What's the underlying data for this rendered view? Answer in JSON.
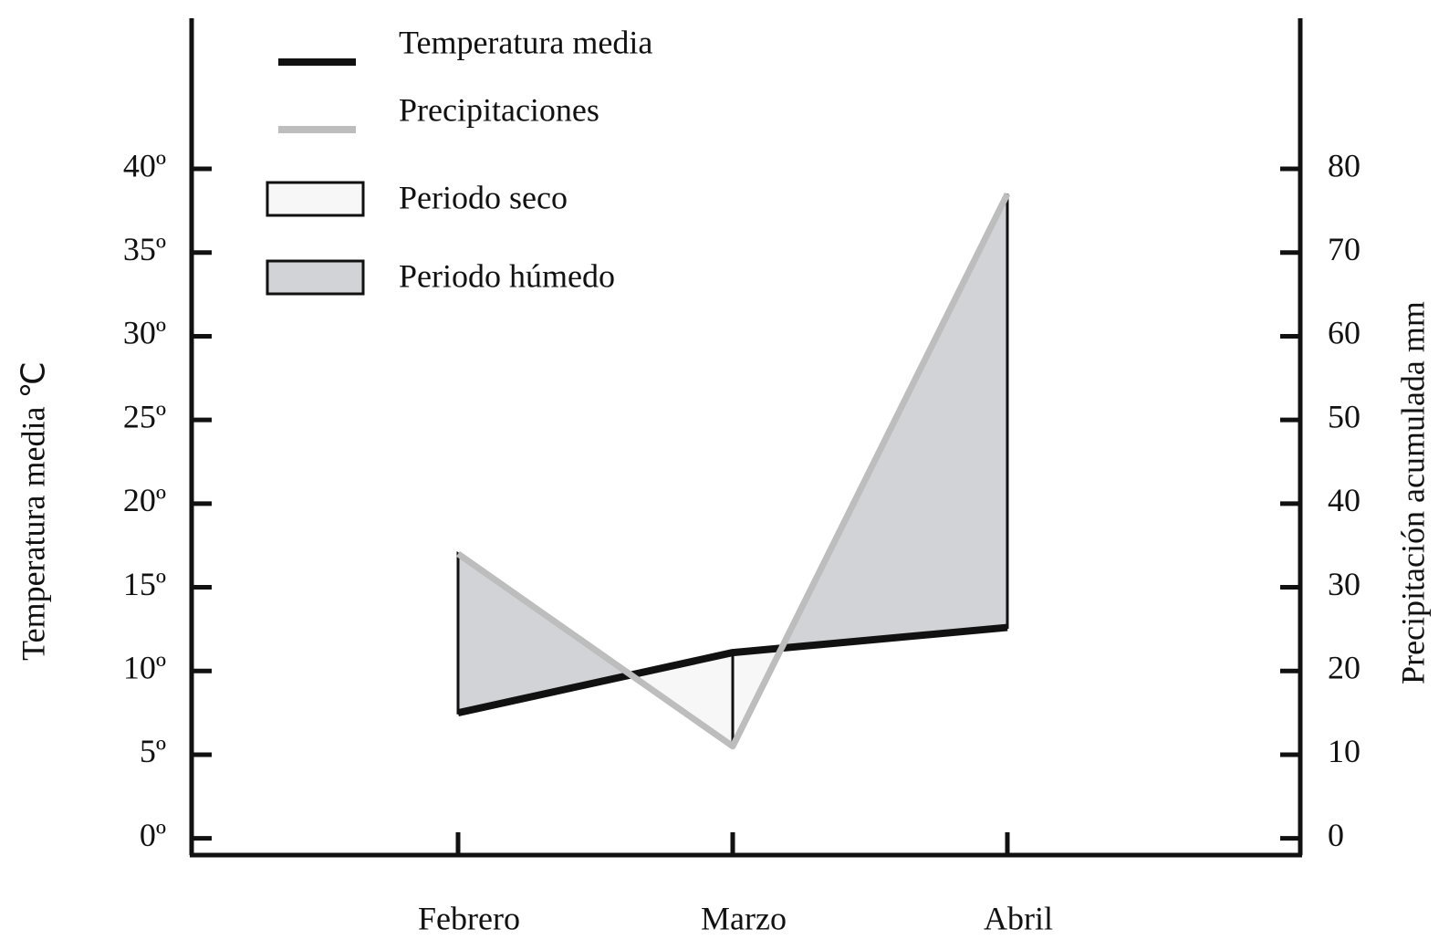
{
  "chart_data": {
    "type": "line",
    "categories": [
      "Febrero",
      "Marzo",
      "Abril"
    ],
    "series": [
      {
        "name": "Temperatura media",
        "color": "#111111",
        "values": [
          7.5,
          11.1,
          12.6
        ]
      },
      {
        "name": "Precipitaciones",
        "color": "#bdbdbd",
        "values": [
          34,
          11,
          77
        ],
        "axis": "y2"
      }
    ],
    "areas": [
      {
        "name": "Periodo seco",
        "color": "#f7f7f7"
      },
      {
        "name": "Periodo húmedo",
        "color": "#d1d3d6"
      }
    ],
    "ylabel": "Temperatura media ℃",
    "y2label": "Precipitación acumulada  mm",
    "ylim": [
      -1,
      49
    ],
    "yticks": [
      {
        "value": 0,
        "label": "0º"
      },
      {
        "value": 5,
        "label": "5º"
      },
      {
        "value": 10,
        "label": "10º"
      },
      {
        "value": 15,
        "label": "15º"
      },
      {
        "value": 20,
        "label": "20º"
      },
      {
        "value": 25,
        "label": "25º"
      },
      {
        "value": 30,
        "label": "30º"
      },
      {
        "value": 35,
        "label": "35º"
      },
      {
        "value": 40,
        "label": "40º"
      }
    ],
    "y2lim": [
      -2,
      98
    ],
    "y2ticks": [
      0,
      10,
      20,
      30,
      40,
      50,
      60,
      70,
      80
    ]
  }
}
